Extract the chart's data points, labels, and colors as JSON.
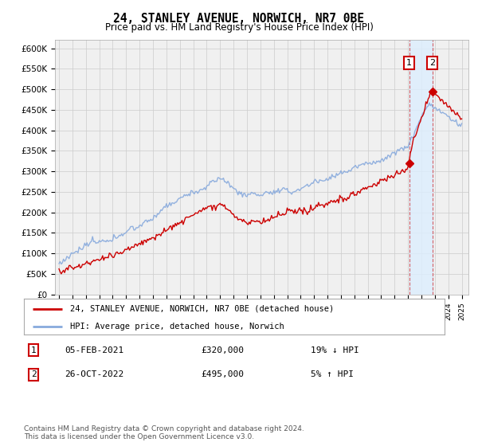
{
  "title": "24, STANLEY AVENUE, NORWICH, NR7 0BE",
  "subtitle": "Price paid vs. HM Land Registry's House Price Index (HPI)",
  "background_color": "#ffffff",
  "grid_color": "#cccccc",
  "plot_bg_color": "#f0f0f0",
  "hpi_color": "#88aadd",
  "price_color": "#cc0000",
  "ylim": [
    0,
    620000
  ],
  "yticks": [
    0,
    50000,
    100000,
    150000,
    200000,
    250000,
    300000,
    350000,
    400000,
    450000,
    500000,
    550000,
    600000
  ],
  "ytick_labels": [
    "£0",
    "£50K",
    "£100K",
    "£150K",
    "£200K",
    "£250K",
    "£300K",
    "£350K",
    "£400K",
    "£450K",
    "£500K",
    "£550K",
    "£600K"
  ],
  "xlim_start": 1994.7,
  "xlim_end": 2025.5,
  "sale1_x": 2021.09,
  "sale1_y": 320000,
  "sale2_x": 2022.82,
  "sale2_y": 495000,
  "legend_line1": "24, STANLEY AVENUE, NORWICH, NR7 0BE (detached house)",
  "legend_line2": "HPI: Average price, detached house, Norwich",
  "table_row1_num": "1",
  "table_row1_date": "05-FEB-2021",
  "table_row1_price": "£320,000",
  "table_row1_hpi": "19% ↓ HPI",
  "table_row2_num": "2",
  "table_row2_date": "26-OCT-2022",
  "table_row2_price": "£495,000",
  "table_row2_hpi": "5% ↑ HPI",
  "footnote": "Contains HM Land Registry data © Crown copyright and database right 2024.\nThis data is licensed under the Open Government Licence v3.0.",
  "shade_color": "#ddeeff",
  "shade_alpha": 0.8
}
